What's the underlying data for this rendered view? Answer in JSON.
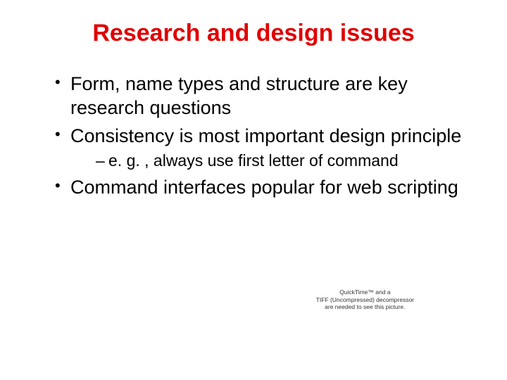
{
  "title": {
    "text": "Research and design issues",
    "color": "#e00000",
    "fontsize": 34
  },
  "bullets": [
    {
      "text": "Form, name types and structure are key research questions",
      "sub": []
    },
    {
      "text": "Consistency is most important design principle",
      "sub": [
        "e. g. , always use first letter of command"
      ]
    },
    {
      "text": "Command interfaces popular for web scripting",
      "sub": []
    }
  ],
  "body_color": "#000000",
  "body_fontsize": 27,
  "sub_fontsize": 23,
  "quicktime": {
    "line1": "QuickTime™ and a",
    "line2": "TIFF (Uncompressed) decompressor",
    "line3": "are needed to see this picture."
  },
  "background": "#ffffff"
}
